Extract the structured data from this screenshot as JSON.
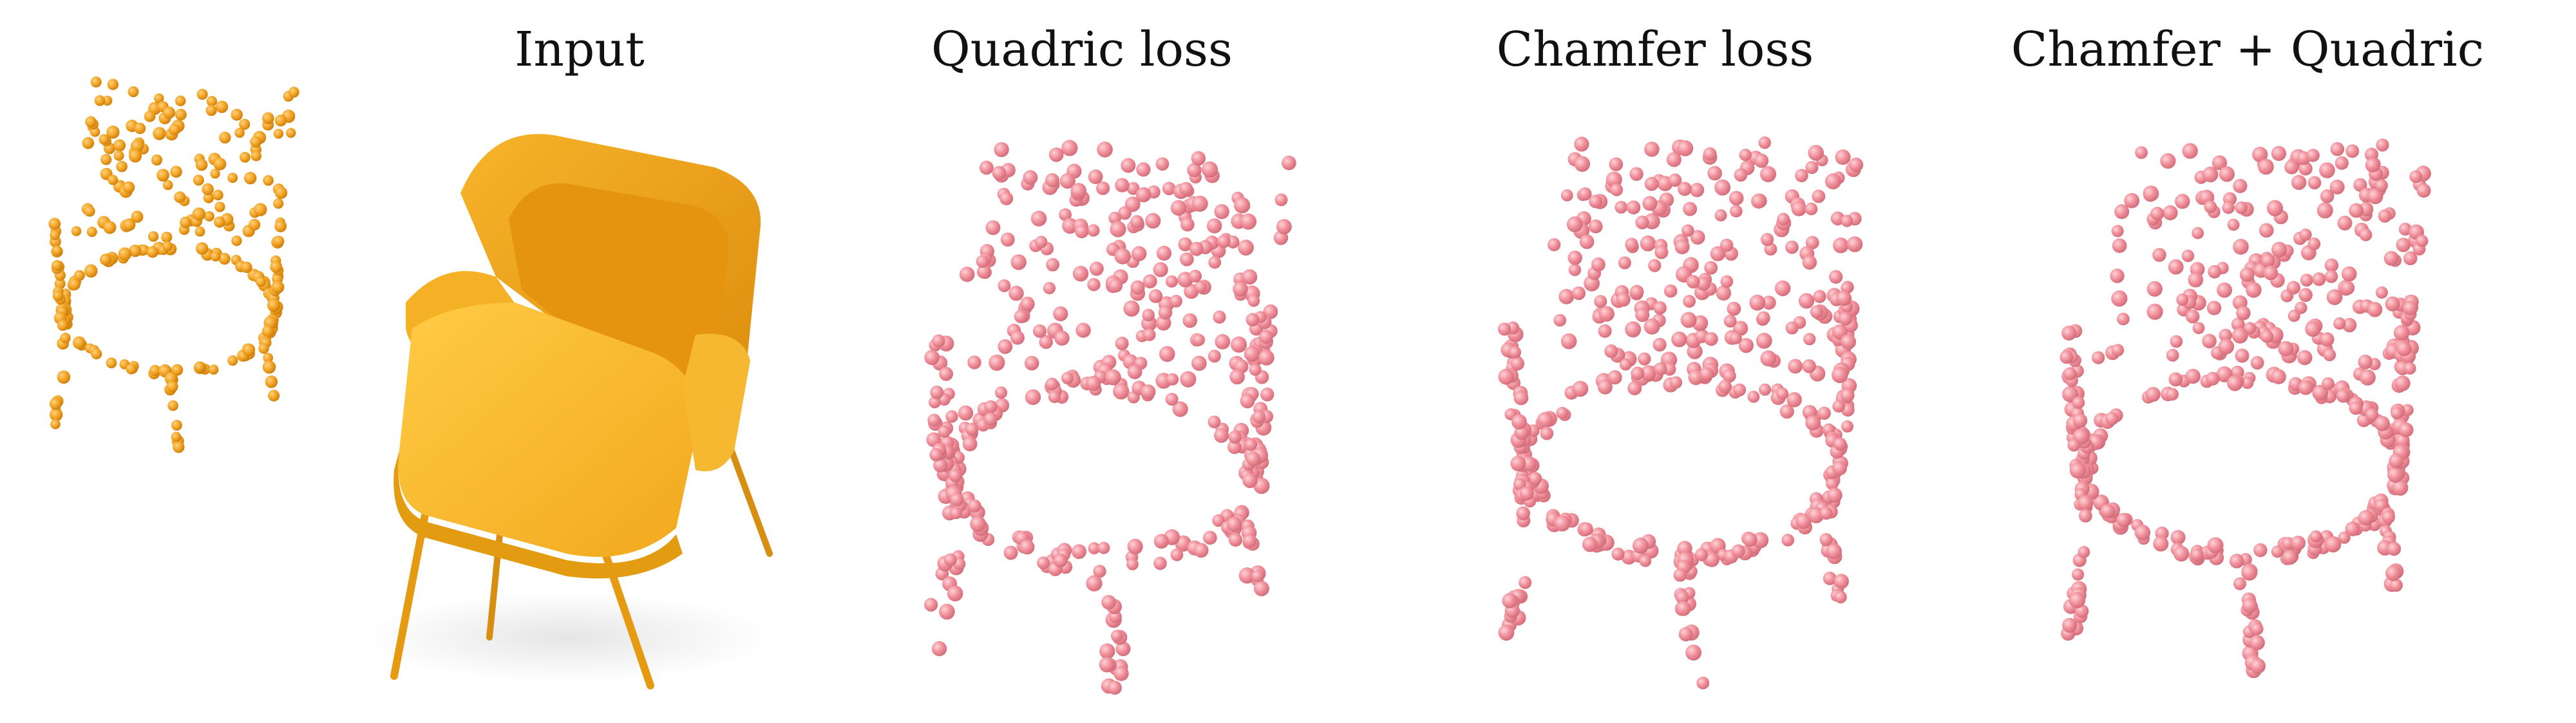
{
  "figure": {
    "panels": [
      {
        "key": "reference",
        "title": ""
      },
      {
        "key": "input",
        "title": "Input"
      },
      {
        "key": "quadric",
        "title": "Quadric loss"
      },
      {
        "key": "chamfer",
        "title": "Chamfer loss"
      },
      {
        "key": "combined",
        "title": "Chamfer + Quadric"
      }
    ]
  },
  "colors": {
    "background": "#ffffff",
    "chair": "#f2a81d",
    "chair_dark": "#d98a0b",
    "points_orange": "#f0a020",
    "points_pink": "#ef8d98",
    "text": "#111111"
  }
}
